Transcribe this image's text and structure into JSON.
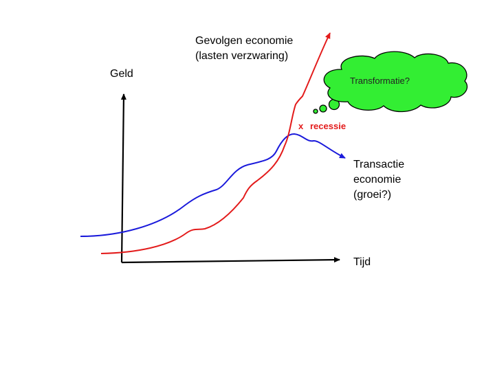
{
  "labels": {
    "y_axis": "Geld",
    "x_axis": "Tijd",
    "red_curve_line1": "Gevolgen economie",
    "red_curve_line2": "(lasten verzwaring)",
    "blue_curve_line1": "Transactie",
    "blue_curve_line2": "economie",
    "blue_curve_line3": "(groei?)",
    "recession_marker": "x",
    "recession_label": "recessie",
    "thought_bubble": "Transformatie?"
  },
  "colors": {
    "red_curve": "#e31b1b",
    "blue_curve": "#1a1adb",
    "axes": "#000000",
    "thought_bubble_fill": "#33ee33",
    "recession_text": "#e31b1b"
  }
}
